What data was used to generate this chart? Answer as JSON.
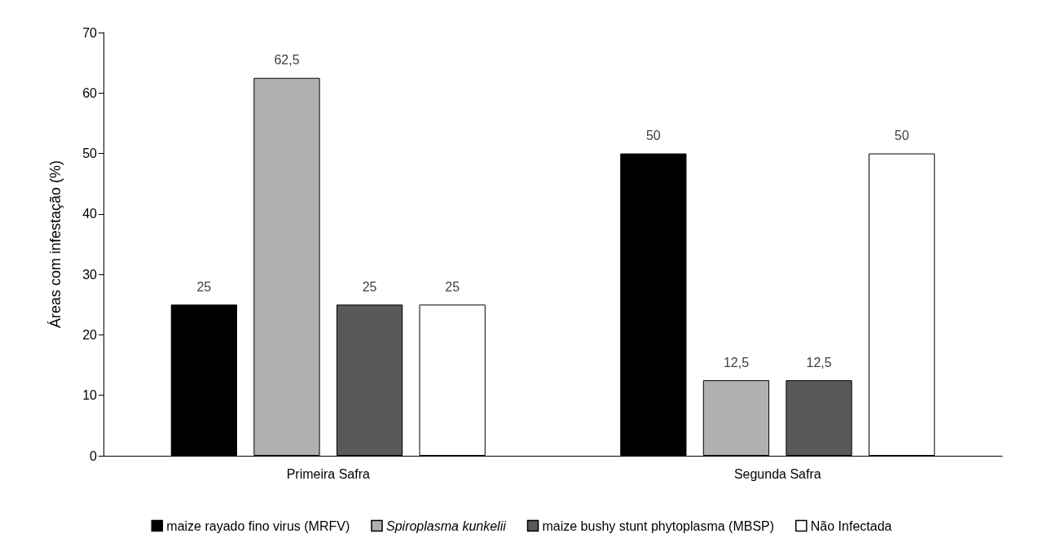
{
  "chart_data": {
    "type": "bar",
    "ylabel": "Áreas com infestação (%)",
    "categories": [
      "Primeira Safra",
      "Segunda Safra"
    ],
    "series": [
      {
        "name": "maize rayado fino virus (MRFV)",
        "color": "#000000",
        "values": [
          25,
          50
        ],
        "value_labels": [
          "25",
          "50"
        ]
      },
      {
        "name": "Spiroplasma kunkelii",
        "color": "#b0b0b0",
        "values": [
          62.5,
          12.5
        ],
        "value_labels": [
          "62,5",
          "12,5"
        ]
      },
      {
        "name": "maize bushy stunt phytoplasma (MBSP)",
        "color": "#595959",
        "values": [
          25,
          12.5
        ],
        "value_labels": [
          "25",
          "12,5"
        ]
      },
      {
        "name": "Não Infectada",
        "color": "#ffffff",
        "values": [
          25,
          50
        ],
        "value_labels": [
          "25",
          "50"
        ]
      }
    ],
    "ylim": [
      0,
      70
    ],
    "yticks": [
      0,
      10,
      20,
      30,
      40,
      50,
      60,
      70
    ],
    "grid": false,
    "legend": "bottom"
  }
}
